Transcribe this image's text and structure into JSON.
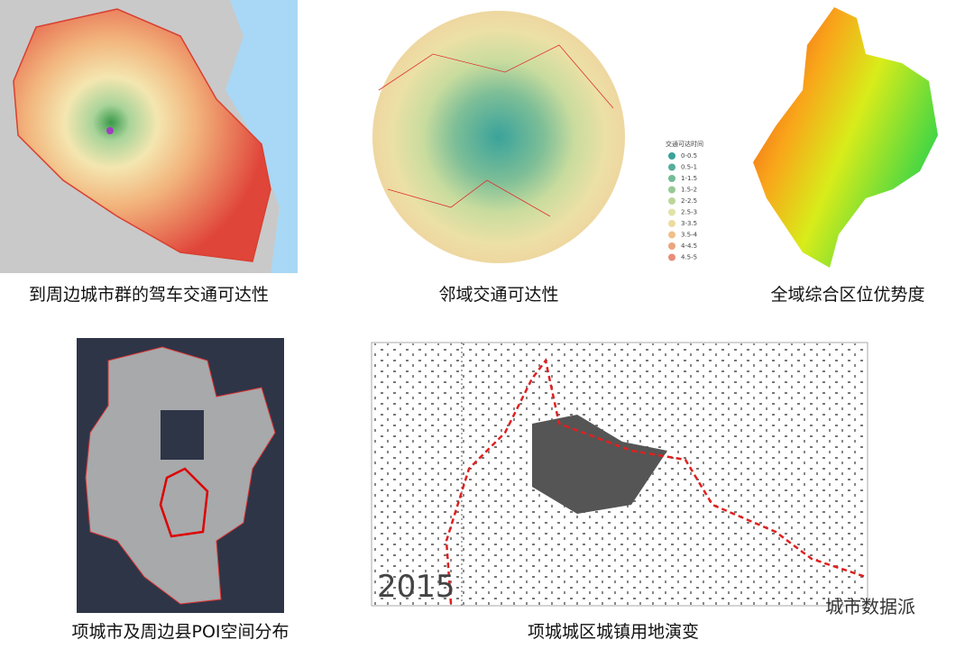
{
  "panels": [
    {
      "caption": "到周边城市群的驾车交通可达性"
    },
    {
      "caption": "邻域交通可达性",
      "legend": {
        "title": "交通可达时间",
        "items": [
          {
            "label": "0-0.5",
            "color": "#3aa39b"
          },
          {
            "label": "0.5-1",
            "color": "#55ad9a"
          },
          {
            "label": "1-1.5",
            "color": "#74bb98"
          },
          {
            "label": "1.5-2",
            "color": "#97c996"
          },
          {
            "label": "2-2.5",
            "color": "#bcd69a"
          },
          {
            "label": "2.5-3",
            "color": "#e0e3a8"
          },
          {
            "label": "3-3.5",
            "color": "#eddba0"
          },
          {
            "label": "3.5-4",
            "color": "#efc08b"
          },
          {
            "label": "4-4.5",
            "color": "#eba57d"
          },
          {
            "label": "4.5-5",
            "color": "#e88d7a"
          }
        ]
      }
    },
    {
      "caption": "全域综合区位优势度"
    },
    {
      "caption": "项城市及周边县POI空间分布"
    },
    {
      "caption": "项城城区城镇用地演变",
      "year": "2015"
    }
  ],
  "watermark": "城市数据派"
}
